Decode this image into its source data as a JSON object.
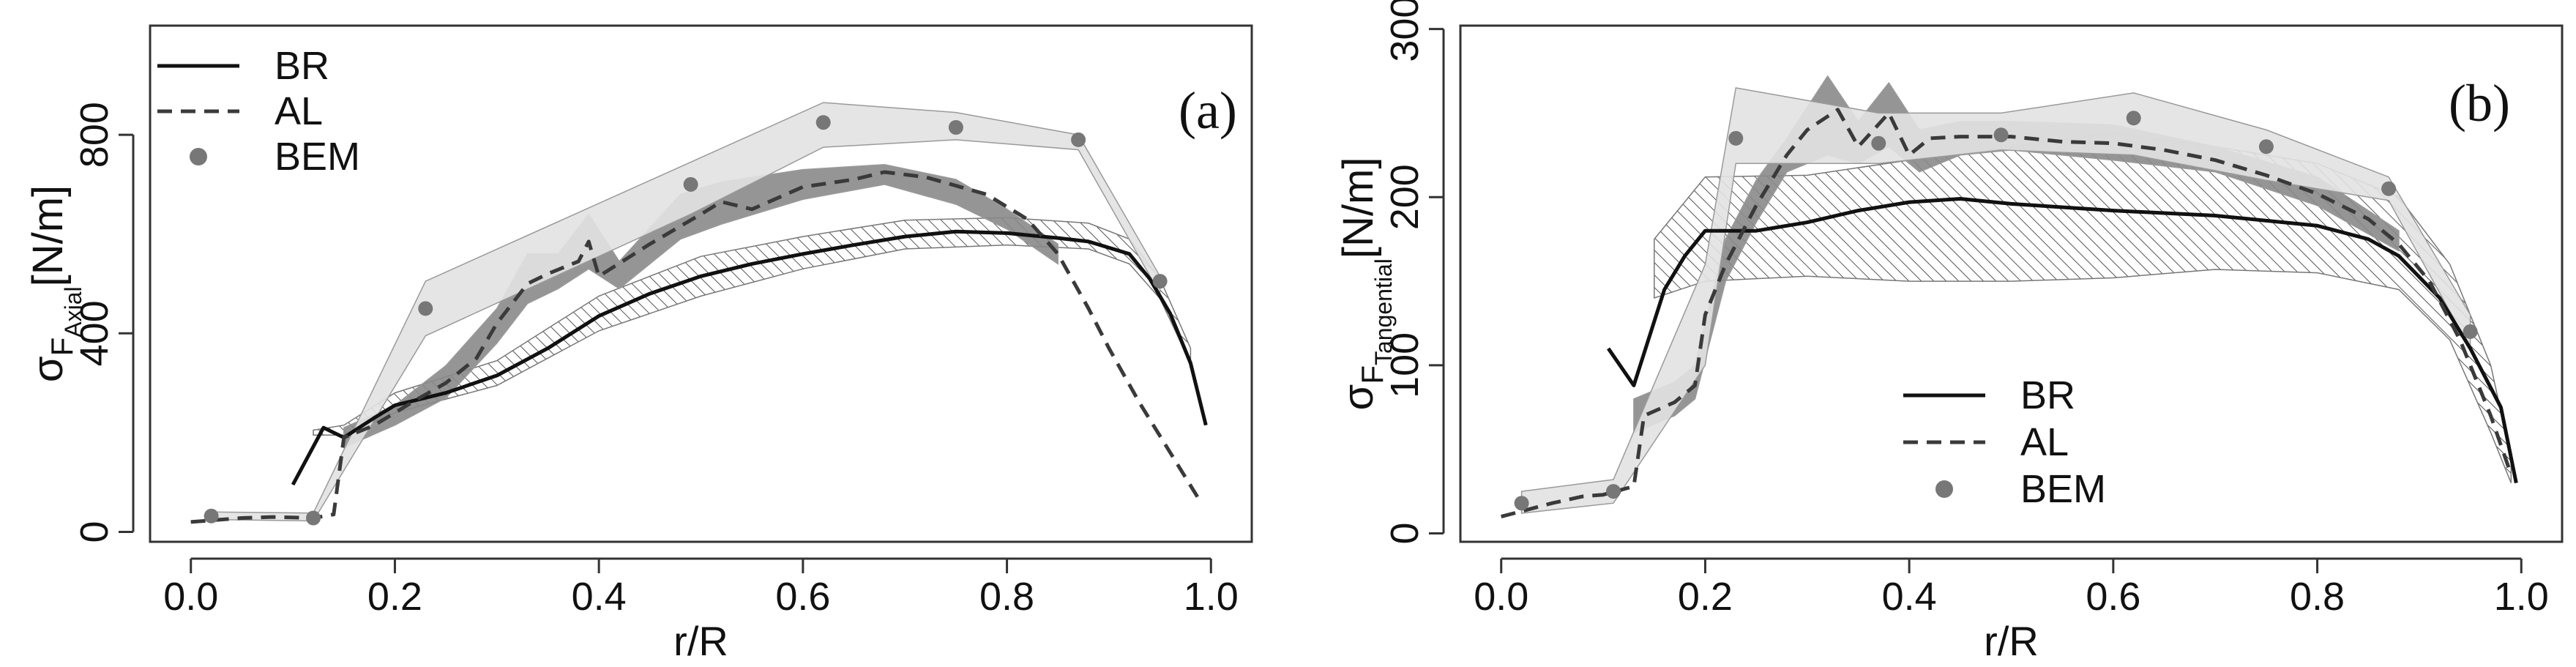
{
  "figure": {
    "background": "#ffffff"
  },
  "chart_data": [
    {
      "type": "line",
      "panel_label": "(a)",
      "title": "",
      "xlabel": "r/R",
      "ylabel": {
        "base": "σ",
        "sub1": "F",
        "sub2": "Axial",
        "unit": "[N/m]"
      },
      "xlim": [
        -0.04,
        1.04
      ],
      "ylim": [
        -20,
        1020
      ],
      "xticks": [
        0.0,
        0.2,
        0.4,
        0.6,
        0.8,
        1.0
      ],
      "xtick_labels": [
        "0.0",
        "0.2",
        "0.4",
        "0.6",
        "0.8",
        "1.0"
      ],
      "yticks": [
        0,
        400,
        800
      ],
      "ytick_labels": [
        "0",
        "400",
        "800"
      ],
      "grid": false,
      "legend_position": "top-left",
      "legend": [
        {
          "label": "BR",
          "style": "solid"
        },
        {
          "label": "AL",
          "style": "dashed"
        },
        {
          "label": "BEM",
          "style": "point"
        }
      ],
      "series": [
        {
          "name": "BR",
          "style": "solid",
          "color": "#111111",
          "x": [
            0.1,
            0.13,
            0.15,
            0.18,
            0.2,
            0.25,
            0.3,
            0.35,
            0.4,
            0.45,
            0.5,
            0.55,
            0.6,
            0.65,
            0.7,
            0.75,
            0.8,
            0.85,
            0.88,
            0.92,
            0.94,
            0.96,
            0.98,
            0.995
          ],
          "y": [
            95,
            210,
            190,
            230,
            255,
            280,
            315,
            370,
            435,
            480,
            515,
            540,
            560,
            578,
            595,
            605,
            602,
            592,
            585,
            560,
            510,
            440,
            340,
            215
          ],
          "band": {
            "fill": "hatch",
            "x": [
              0.12,
              0.15,
              0.2,
              0.3,
              0.4,
              0.5,
              0.6,
              0.7,
              0.8,
              0.88,
              0.92,
              0.95,
              0.98
            ],
            "low": [
              195,
              195,
              240,
              295,
              405,
              475,
              530,
              570,
              578,
              570,
              540,
              470,
              340
            ],
            "high": [
              205,
              215,
              280,
              345,
              475,
              555,
              595,
              628,
              633,
              622,
              590,
              510,
              370
            ]
          }
        },
        {
          "name": "AL",
          "style": "dashed",
          "color": "#3a3a3a",
          "x": [
            0.0,
            0.05,
            0.08,
            0.12,
            0.14,
            0.15,
            0.18,
            0.2,
            0.22,
            0.25,
            0.28,
            0.3,
            0.33,
            0.35,
            0.38,
            0.39,
            0.4,
            0.45,
            0.5,
            0.52,
            0.55,
            0.6,
            0.65,
            0.68,
            0.72,
            0.78,
            0.82,
            0.85,
            0.88,
            0.9,
            0.93,
            0.96,
            0.99
          ],
          "y": [
            20,
            28,
            30,
            28,
            35,
            190,
            215,
            240,
            265,
            300,
            350,
            420,
            500,
            520,
            545,
            585,
            515,
            580,
            640,
            665,
            650,
            695,
            710,
            725,
            715,
            680,
            630,
            560,
            450,
            370,
            260,
            160,
            60
          ],
          "band": {
            "fill": "#8a8a8a",
            "x": [
              0.15,
              0.2,
              0.25,
              0.3,
              0.33,
              0.36,
              0.39,
              0.42,
              0.48,
              0.52,
              0.6,
              0.68,
              0.75,
              0.8,
              0.85
            ],
            "low": [
              170,
              215,
              270,
              380,
              460,
              490,
              530,
              490,
              590,
              620,
              670,
              700,
              660,
              610,
              540
            ],
            "high": [
              210,
              255,
              335,
              450,
              560,
              560,
              640,
              545,
              680,
              705,
              730,
              740,
              710,
              650,
              580
            ]
          }
        },
        {
          "name": "BEM",
          "style": "point",
          "color": "#777777",
          "x": [
            0.02,
            0.12,
            0.23,
            0.49,
            0.62,
            0.75,
            0.87,
            0.95
          ],
          "y": [
            32,
            28,
            450,
            700,
            825,
            815,
            790,
            505
          ],
          "band": {
            "fill": "#e2e2e2",
            "x": [
              0.02,
              0.12,
              0.23,
              0.49,
              0.62,
              0.75,
              0.87,
              0.95
            ],
            "low": [
              25,
              22,
              395,
              640,
              775,
              790,
              770,
              480
            ],
            "high": [
              40,
              38,
              505,
              745,
              865,
              845,
              800,
              515
            ]
          }
        }
      ]
    },
    {
      "type": "line",
      "panel_label": "(b)",
      "title": "",
      "xlabel": "r/R",
      "ylabel": {
        "base": "σ",
        "sub1": "F",
        "sub2": "Tangential",
        "unit": "[N/m]"
      },
      "xlim": [
        -0.04,
        1.04
      ],
      "ylim": [
        -5,
        302
      ],
      "xticks": [
        0.0,
        0.2,
        0.4,
        0.6,
        0.8,
        1.0
      ],
      "xtick_labels": [
        "0.0",
        "0.2",
        "0.4",
        "0.6",
        "0.8",
        "1.0"
      ],
      "yticks": [
        0,
        100,
        200,
        300
      ],
      "ytick_labels": [
        "0",
        "100",
        "200",
        "300"
      ],
      "grid": false,
      "legend_position": "bottom-center",
      "legend": [
        {
          "label": "BR",
          "style": "solid"
        },
        {
          "label": "AL",
          "style": "dashed"
        },
        {
          "label": "BEM",
          "style": "point"
        }
      ],
      "series": [
        {
          "name": "BR",
          "style": "solid",
          "color": "#111111",
          "x": [
            0.105,
            0.13,
            0.16,
            0.18,
            0.2,
            0.25,
            0.3,
            0.35,
            0.4,
            0.45,
            0.5,
            0.6,
            0.7,
            0.8,
            0.85,
            0.88,
            0.92,
            0.95,
            0.98,
            0.995
          ],
          "y": [
            110,
            88,
            145,
            165,
            180,
            180,
            185,
            192,
            197,
            199,
            196,
            192,
            189,
            183,
            175,
            165,
            140,
            110,
            75,
            30
          ],
          "band": {
            "fill": "hatch",
            "x": [
              0.15,
              0.2,
              0.3,
              0.4,
              0.5,
              0.6,
              0.7,
              0.8,
              0.88,
              0.93,
              0.97,
              0.99
            ],
            "low": [
              140,
              150,
              153,
              150,
              150,
              152,
              157,
              155,
              145,
              115,
              60,
              30
            ],
            "high": [
              175,
              212,
              213,
              222,
              230,
              238,
              230,
              220,
              200,
              160,
              100,
              45
            ]
          }
        },
        {
          "name": "AL",
          "style": "dashed",
          "color": "#3a3a3a",
          "x": [
            0.0,
            0.05,
            0.08,
            0.1,
            0.13,
            0.14,
            0.17,
            0.19,
            0.2,
            0.22,
            0.25,
            0.28,
            0.3,
            0.33,
            0.35,
            0.38,
            0.4,
            0.42,
            0.45,
            0.5,
            0.55,
            0.6,
            0.65,
            0.7,
            0.75,
            0.8,
            0.85,
            0.88,
            0.91,
            0.94,
            0.97,
            0.99
          ],
          "y": [
            10,
            18,
            22,
            23,
            28,
            70,
            78,
            88,
            130,
            160,
            195,
            225,
            240,
            252,
            230,
            250,
            225,
            235,
            236,
            236,
            233,
            232,
            228,
            222,
            213,
            202,
            187,
            172,
            150,
            115,
            70,
            35
          ],
          "band": {
            "fill": "#8a8a8a",
            "x": [
              0.13,
              0.17,
              0.19,
              0.22,
              0.25,
              0.28,
              0.32,
              0.35,
              0.38,
              0.41,
              0.45,
              0.5,
              0.6,
              0.7,
              0.8,
              0.88
            ],
            "low": [
              60,
              70,
              80,
              150,
              185,
              215,
              225,
              220,
              230,
              215,
              225,
              228,
              222,
              215,
              195,
              168
            ],
            "high": [
              80,
              90,
              100,
              175,
              210,
              235,
              272,
              245,
              268,
              240,
              245,
              245,
              243,
              230,
              212,
              180
            ]
          }
        },
        {
          "name": "BEM",
          "style": "point",
          "color": "#777777",
          "x": [
            0.02,
            0.11,
            0.23,
            0.37,
            0.49,
            0.62,
            0.75,
            0.87,
            0.95
          ],
          "y": [
            18,
            25,
            235,
            232,
            237,
            247,
            230,
            205,
            120
          ],
          "band": {
            "fill": "#e2e2e2",
            "x": [
              0.02,
              0.11,
              0.2,
              0.23,
              0.37,
              0.49,
              0.62,
              0.75,
              0.87,
              0.95
            ],
            "low": [
              12,
              18,
              100,
              220,
              220,
              228,
              225,
              210,
              198,
              110
            ],
            "high": [
              25,
              32,
              160,
              265,
              250,
              250,
              262,
              240,
              212,
              130
            ]
          }
        }
      ]
    }
  ]
}
